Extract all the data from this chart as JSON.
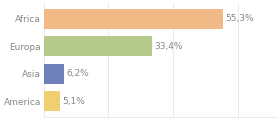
{
  "categories": [
    "Africa",
    "Europa",
    "Asia",
    "America"
  ],
  "values": [
    55.3,
    33.4,
    6.2,
    5.1
  ],
  "labels": [
    "55,3%",
    "33,4%",
    "6,2%",
    "5,1%"
  ],
  "bar_colors": [
    "#f0b985",
    "#b5c98a",
    "#7080b8",
    "#f0cf70"
  ],
  "background_color": "#ffffff",
  "xlim": [
    0,
    72
  ],
  "bar_height": 0.72,
  "label_fontsize": 6.5,
  "tick_fontsize": 6.5,
  "text_color": "#888888",
  "grid_color": "#e0e0e0"
}
